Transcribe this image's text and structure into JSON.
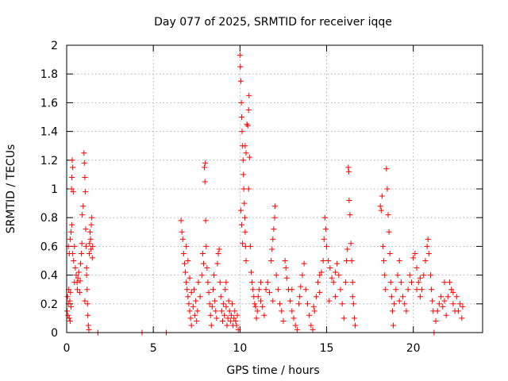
{
  "chart_data": {
    "type": "scatter",
    "title": "Day 077 of 2025, SRMTID for receiver iqqe",
    "xlabel": "GPS time / hours",
    "ylabel": "SRMTID / TECUs",
    "xlim": [
      0,
      24
    ],
    "ylim": [
      0,
      2
    ],
    "x_ticks": [
      "0",
      "5",
      "10",
      "15",
      "20"
    ],
    "x_tick_values": [
      0,
      5,
      10,
      15,
      20
    ],
    "y_ticks": [
      "0",
      "0.2",
      "0.4",
      "0.6",
      "0.8",
      "1",
      "1.2",
      "1.4",
      "1.6",
      "1.8",
      "2"
    ],
    "y_tick_values": [
      0,
      0.2,
      0.4,
      0.6,
      0.8,
      1,
      1.2,
      1.4,
      1.6,
      1.8,
      2
    ],
    "grid": true,
    "marker": "+",
    "series": [
      {
        "name": "SRMTID",
        "color": "#ff0000",
        "points": [
          [
            0.02,
            0.15
          ],
          [
            0.05,
            0.25
          ],
          [
            0.08,
            0.12
          ],
          [
            0.1,
            0.2
          ],
          [
            0.12,
            0.3
          ],
          [
            0.15,
            0.1
          ],
          [
            0.18,
            0.22
          ],
          [
            0.2,
            0.08
          ],
          [
            0.22,
            0.28
          ],
          [
            0.25,
            0.18
          ],
          [
            0.1,
            0.6
          ],
          [
            0.15,
            0.55
          ],
          [
            0.2,
            0.65
          ],
          [
            0.25,
            0.7
          ],
          [
            0.3,
            0.75
          ],
          [
            0.28,
            1.0
          ],
          [
            0.3,
            1.08
          ],
          [
            0.32,
            1.2
          ],
          [
            0.35,
            1.15
          ],
          [
            0.38,
            0.98
          ],
          [
            0.35,
            0.55
          ],
          [
            0.4,
            0.5
          ],
          [
            0.45,
            0.6
          ],
          [
            0.5,
            0.45
          ],
          [
            0.55,
            0.4
          ],
          [
            0.6,
            0.35
          ],
          [
            0.62,
            0.3
          ],
          [
            0.65,
            0.38
          ],
          [
            0.7,
            0.42
          ],
          [
            0.75,
            0.28
          ],
          [
            0.78,
            0.36
          ],
          [
            0.8,
            0.48
          ],
          [
            0.85,
            0.55
          ],
          [
            0.88,
            0.62
          ],
          [
            0.9,
            0.82
          ],
          [
            0.95,
            0.88
          ],
          [
            1.0,
            1.25
          ],
          [
            1.02,
            1.18
          ],
          [
            1.05,
            1.08
          ],
          [
            1.08,
            0.98
          ],
          [
            1.1,
            0.72
          ],
          [
            1.12,
            0.6
          ],
          [
            1.15,
            0.4
          ],
          [
            1.18,
            0.3
          ],
          [
            1.2,
            0.2
          ],
          [
            1.22,
            0.12
          ],
          [
            1.25,
            0.05
          ],
          [
            1.28,
            0.02
          ],
          [
            1.3,
            0.55
          ],
          [
            1.32,
            0.62
          ],
          [
            1.35,
            0.7
          ],
          [
            1.38,
            0.65
          ],
          [
            1.4,
            0.58
          ],
          [
            1.42,
            0.75
          ],
          [
            1.45,
            0.8
          ],
          [
            1.48,
            0.52
          ],
          [
            1.5,
            0.6
          ],
          [
            1.05,
            0.22
          ],
          [
            1.15,
            0.45
          ],
          [
            0.45,
            0.35
          ],
          [
            1.8,
            0.0
          ],
          [
            4.35,
            0.0
          ],
          [
            5.75,
            0.0
          ],
          [
            6.6,
            0.78
          ],
          [
            6.65,
            0.7
          ],
          [
            6.7,
            0.65
          ],
          [
            6.75,
            0.55
          ],
          [
            6.8,
            0.48
          ],
          [
            6.85,
            0.42
          ],
          [
            6.9,
            0.35
          ],
          [
            6.95,
            0.3
          ],
          [
            7.0,
            0.25
          ],
          [
            7.05,
            0.2
          ],
          [
            7.1,
            0.15
          ],
          [
            7.15,
            0.1
          ],
          [
            7.2,
            0.05
          ],
          [
            6.9,
            0.6
          ],
          [
            7.0,
            0.5
          ],
          [
            7.1,
            0.38
          ],
          [
            7.2,
            0.28
          ],
          [
            7.3,
            0.18
          ],
          [
            7.4,
            0.12
          ],
          [
            7.5,
            0.08
          ],
          [
            7.35,
            0.3
          ],
          [
            7.45,
            0.22
          ],
          [
            7.55,
            0.15
          ],
          [
            7.6,
            0.35
          ],
          [
            7.7,
            0.25
          ],
          [
            7.8,
            0.4
          ],
          [
            7.85,
            0.55
          ],
          [
            7.9,
            0.48
          ],
          [
            7.95,
            1.15
          ],
          [
            8.0,
            1.18
          ],
          [
            7.98,
            1.05
          ],
          [
            8.02,
            0.78
          ],
          [
            8.05,
            0.6
          ],
          [
            8.1,
            0.45
          ],
          [
            8.15,
            0.35
          ],
          [
            8.2,
            0.28
          ],
          [
            8.25,
            0.2
          ],
          [
            8.3,
            0.12
          ],
          [
            8.35,
            0.05
          ],
          [
            8.4,
            0.18
          ],
          [
            8.45,
            0.3
          ],
          [
            8.5,
            0.4
          ],
          [
            8.55,
            0.22
          ],
          [
            8.6,
            0.15
          ],
          [
            8.65,
            0.1
          ],
          [
            8.7,
            0.48
          ],
          [
            8.75,
            0.55
          ],
          [
            8.8,
            0.58
          ],
          [
            8.85,
            0.35
          ],
          [
            8.9,
            0.25
          ],
          [
            8.95,
            0.15
          ],
          [
            9.0,
            0.08
          ],
          [
            9.05,
            0.2
          ],
          [
            9.1,
            0.12
          ],
          [
            9.15,
            0.3
          ],
          [
            9.2,
            0.18
          ],
          [
            9.25,
            0.05
          ],
          [
            9.3,
            0.1
          ],
          [
            9.35,
            0.22
          ],
          [
            9.4,
            0.15
          ],
          [
            9.45,
            0.08
          ],
          [
            9.5,
            0.12
          ],
          [
            9.55,
            0.2
          ],
          [
            9.6,
            0.05
          ],
          [
            9.65,
            0.1
          ],
          [
            9.7,
            0.15
          ],
          [
            9.75,
            0.08
          ],
          [
            9.8,
            0.05
          ],
          [
            9.85,
            0.12
          ],
          [
            9.9,
            0.02
          ],
          [
            10.0,
            1.93
          ],
          [
            10.02,
            1.85
          ],
          [
            10.05,
            1.75
          ],
          [
            10.08,
            1.6
          ],
          [
            10.1,
            1.5
          ],
          [
            10.12,
            1.4
          ],
          [
            10.15,
            1.3
          ],
          [
            10.18,
            1.2
          ],
          [
            10.2,
            1.1
          ],
          [
            10.22,
            1.0
          ],
          [
            10.25,
            0.9
          ],
          [
            10.28,
            0.8
          ],
          [
            10.3,
            0.7
          ],
          [
            10.32,
            0.6
          ],
          [
            10.35,
            0.5
          ],
          [
            10.05,
            0.85
          ],
          [
            10.1,
            0.75
          ],
          [
            10.15,
            0.62
          ],
          [
            10.3,
            1.3
          ],
          [
            10.35,
            1.25
          ],
          [
            10.4,
            1.45
          ],
          [
            10.45,
            1.44
          ],
          [
            10.5,
            1.55
          ],
          [
            10.52,
            1.65
          ],
          [
            10.55,
            1.22
          ],
          [
            10.5,
            1.0
          ],
          [
            10.6,
            0.6
          ],
          [
            10.65,
            0.42
          ],
          [
            10.7,
            0.35
          ],
          [
            10.75,
            0.3
          ],
          [
            10.8,
            0.25
          ],
          [
            10.85,
            0.2
          ],
          [
            10.9,
            0.18
          ],
          [
            10.95,
            0.1
          ],
          [
            11.0,
            0.15
          ],
          [
            11.05,
            0.25
          ],
          [
            11.1,
            0.3
          ],
          [
            11.2,
            0.22
          ],
          [
            11.3,
            0.18
          ],
          [
            11.4,
            0.12
          ],
          [
            11.5,
            0.3
          ],
          [
            11.6,
            0.35
          ],
          [
            11.7,
            0.28
          ],
          [
            11.8,
            0.5
          ],
          [
            11.85,
            0.58
          ],
          [
            11.9,
            0.65
          ],
          [
            11.95,
            0.72
          ],
          [
            12.0,
            0.8
          ],
          [
            12.02,
            0.88
          ],
          [
            12.1,
            0.4
          ],
          [
            12.2,
            0.3
          ],
          [
            12.3,
            0.2
          ],
          [
            12.4,
            0.15
          ],
          [
            12.5,
            0.08
          ],
          [
            12.6,
            0.5
          ],
          [
            12.65,
            0.45
          ],
          [
            12.7,
            0.38
          ],
          [
            12.8,
            0.3
          ],
          [
            12.9,
            0.22
          ],
          [
            13.0,
            0.15
          ],
          [
            13.1,
            0.1
          ],
          [
            13.2,
            0.05
          ],
          [
            13.3,
            0.02
          ],
          [
            13.4,
            0.2
          ],
          [
            13.5,
            0.32
          ],
          [
            13.6,
            0.4
          ],
          [
            13.7,
            0.48
          ],
          [
            13.8,
            0.3
          ],
          [
            13.9,
            0.2
          ],
          [
            14.0,
            0.12
          ],
          [
            14.1,
            0.05
          ],
          [
            14.2,
            0.02
          ],
          [
            14.3,
            0.15
          ],
          [
            14.4,
            0.25
          ],
          [
            14.5,
            0.35
          ],
          [
            14.6,
            0.4
          ],
          [
            14.7,
            0.42
          ],
          [
            14.8,
            0.5
          ],
          [
            14.85,
            0.65
          ],
          [
            14.9,
            0.8
          ],
          [
            14.95,
            0.72
          ],
          [
            15.0,
            0.6
          ],
          [
            15.1,
            0.5
          ],
          [
            15.2,
            0.45
          ],
          [
            15.3,
            0.38
          ],
          [
            15.4,
            0.35
          ],
          [
            15.5,
            0.42
          ],
          [
            15.6,
            0.48
          ],
          [
            15.7,
            0.4
          ],
          [
            15.8,
            0.3
          ],
          [
            15.9,
            0.2
          ],
          [
            16.0,
            0.1
          ],
          [
            16.1,
            0.35
          ],
          [
            16.15,
            0.5
          ],
          [
            16.2,
            0.58
          ],
          [
            16.25,
            1.15
          ],
          [
            16.28,
            1.12
          ],
          [
            16.3,
            0.92
          ],
          [
            16.35,
            0.82
          ],
          [
            16.4,
            0.62
          ],
          [
            16.45,
            0.5
          ],
          [
            16.5,
            0.35
          ],
          [
            16.55,
            0.2
          ],
          [
            16.6,
            0.1
          ],
          [
            16.65,
            0.05
          ],
          [
            18.1,
            0.88
          ],
          [
            18.15,
            0.85
          ],
          [
            18.2,
            0.95
          ],
          [
            18.25,
            0.6
          ],
          [
            18.3,
            0.5
          ],
          [
            18.35,
            0.4
          ],
          [
            18.4,
            0.3
          ],
          [
            18.45,
            1.14
          ],
          [
            18.5,
            1.0
          ],
          [
            18.55,
            0.82
          ],
          [
            18.6,
            0.7
          ],
          [
            18.65,
            0.55
          ],
          [
            18.7,
            0.35
          ],
          [
            18.75,
            0.25
          ],
          [
            18.8,
            0.15
          ],
          [
            18.85,
            0.05
          ],
          [
            18.9,
            0.2
          ],
          [
            19.0,
            0.3
          ],
          [
            19.1,
            0.4
          ],
          [
            19.2,
            0.5
          ],
          [
            19.3,
            0.35
          ],
          [
            19.4,
            0.25
          ],
          [
            19.5,
            0.2
          ],
          [
            19.6,
            0.15
          ],
          [
            19.7,
            0.3
          ],
          [
            19.8,
            0.4
          ],
          [
            19.9,
            0.35
          ],
          [
            20.0,
            0.52
          ],
          [
            20.1,
            0.55
          ],
          [
            20.2,
            0.45
          ],
          [
            20.3,
            0.35
          ],
          [
            20.4,
            0.25
          ],
          [
            20.5,
            0.3
          ],
          [
            20.6,
            0.4
          ],
          [
            20.7,
            0.5
          ],
          [
            20.8,
            0.6
          ],
          [
            20.85,
            0.65
          ],
          [
            20.9,
            0.55
          ],
          [
            21.0,
            0.4
          ],
          [
            21.05,
            0.3
          ],
          [
            21.1,
            0.22
          ],
          [
            21.15,
            0.15
          ],
          [
            21.2,
            0.0
          ],
          [
            21.3,
            0.08
          ],
          [
            21.4,
            0.15
          ],
          [
            21.5,
            0.2
          ],
          [
            21.6,
            0.25
          ],
          [
            21.7,
            0.18
          ],
          [
            21.8,
            0.22
          ],
          [
            21.9,
            0.12
          ],
          [
            22.0,
            0.25
          ],
          [
            22.1,
            0.35
          ],
          [
            22.2,
            0.3
          ],
          [
            22.3,
            0.2
          ],
          [
            22.4,
            0.15
          ],
          [
            22.5,
            0.25
          ],
          [
            22.6,
            0.15
          ],
          [
            22.7,
            0.2
          ],
          [
            22.8,
            0.1
          ],
          [
            22.85,
            0.18
          ],
          [
            13.45,
            0.25
          ],
          [
            14.25,
            0.18
          ],
          [
            15.15,
            0.22
          ],
          [
            16.5,
            0.25
          ],
          [
            20.4,
            0.38
          ],
          [
            11.2,
            0.35
          ],
          [
            11.9,
            0.22
          ],
          [
            13.0,
            0.3
          ],
          [
            14.6,
            0.28
          ],
          [
            15.5,
            0.25
          ],
          [
            19.2,
            0.22
          ],
          [
            20.2,
            0.3
          ],
          [
            21.8,
            0.35
          ],
          [
            22.3,
            0.28
          ],
          [
            9.2,
            0.35
          ]
        ]
      }
    ]
  }
}
